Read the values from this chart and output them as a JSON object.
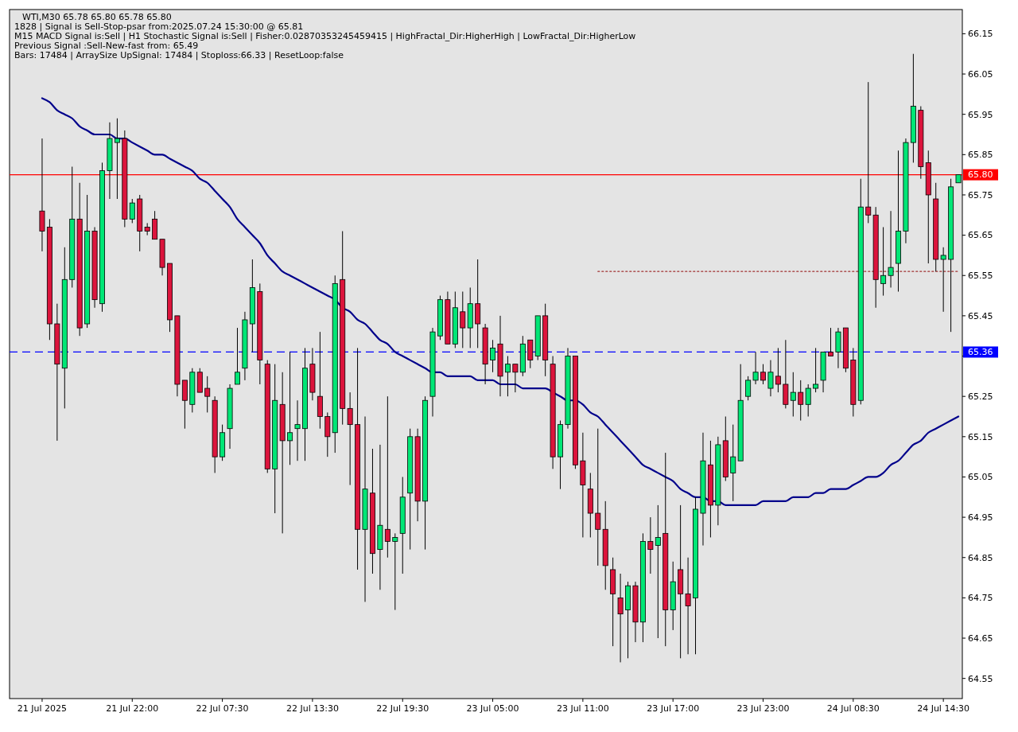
{
  "chart_data": {
    "type": "candlestick",
    "title": "WTI,M30  65.78 65.80 65.78 65.80",
    "annotations": [
      "1828 | Signal is Sell-Stop-psar from:2025.07.24 15:30:00 @ 65.81",
      "M15 MACD Signal is:Sell | H1 Stochastic Signal is:Sell | Fisher:0.02870353245459415 | HighFractal_Dir:HigherHigh | LowFractal_Dir:HigherLow",
      "Previous Signal :Sell-New-fast from: 65.49",
      "Bars: 17484 | ArraySize UpSignal: 17484 | Stoploss:66.33 | ResetLoop:false"
    ],
    "categories": [
      "21 Jul 2025",
      null,
      null,
      null,
      null,
      null,
      null,
      null,
      null,
      null,
      null,
      null,
      "21 Jul 22:00",
      null,
      null,
      null,
      null,
      null,
      null,
      null,
      null,
      null,
      null,
      null,
      "22 Jul 07:30",
      null,
      null,
      null,
      null,
      null,
      null,
      null,
      null,
      null,
      null,
      null,
      "22 Jul 13:30",
      null,
      null,
      null,
      null,
      null,
      null,
      null,
      null,
      null,
      null,
      null,
      "22 Jul 19:30",
      null,
      null,
      null,
      null,
      null,
      null,
      null,
      null,
      null,
      null,
      null,
      "23 Jul 05:00",
      null,
      null,
      null,
      null,
      null,
      null,
      null,
      null,
      null,
      null,
      null,
      "23 Jul 11:00",
      null,
      null,
      null,
      null,
      null,
      null,
      null,
      null,
      null,
      null,
      null,
      "23 Jul 17:00",
      null,
      null,
      null,
      null,
      null,
      null,
      null,
      null,
      null,
      null,
      null,
      "23 Jul 23:00",
      null,
      null,
      null,
      null,
      null,
      null,
      null,
      null,
      null,
      null,
      null,
      "24 Jul 08:30",
      null,
      null,
      null,
      null,
      null,
      null,
      null,
      null,
      null,
      null,
      null,
      "24 Jul 14:30",
      null,
      null
    ],
    "ohlc": [
      [
        65.71,
        65.89,
        65.61,
        65.66
      ],
      [
        65.67,
        65.69,
        65.39,
        65.43
      ],
      [
        65.43,
        65.48,
        65.14,
        65.33
      ],
      [
        65.32,
        65.62,
        65.22,
        65.54
      ],
      [
        65.54,
        65.82,
        65.52,
        65.69
      ],
      [
        65.69,
        65.78,
        65.4,
        65.42
      ],
      [
        65.43,
        65.75,
        65.42,
        65.66
      ],
      [
        65.66,
        65.67,
        65.47,
        65.49
      ],
      [
        65.48,
        65.83,
        65.46,
        65.81
      ],
      [
        65.81,
        65.93,
        65.74,
        65.89
      ],
      [
        65.88,
        65.94,
        65.74,
        65.89
      ],
      [
        65.89,
        65.91,
        65.67,
        65.69
      ],
      [
        65.69,
        65.74,
        65.68,
        65.73
      ],
      [
        65.74,
        65.75,
        65.61,
        65.66
      ],
      [
        65.67,
        65.68,
        65.65,
        65.66
      ],
      [
        65.69,
        65.71,
        65.64,
        65.64
      ],
      [
        65.64,
        65.64,
        65.55,
        65.57
      ],
      [
        65.58,
        65.58,
        65.41,
        65.44
      ],
      [
        65.45,
        65.45,
        65.25,
        65.28
      ],
      [
        65.29,
        65.29,
        65.17,
        65.24
      ],
      [
        65.23,
        65.32,
        65.21,
        65.31
      ],
      [
        65.31,
        65.32,
        65.26,
        65.26
      ],
      [
        65.27,
        65.3,
        65.21,
        65.25
      ],
      [
        65.24,
        65.25,
        65.06,
        65.1
      ],
      [
        65.1,
        65.18,
        65.09,
        65.16
      ],
      [
        65.17,
        65.28,
        65.12,
        65.27
      ],
      [
        65.28,
        65.42,
        65.28,
        65.31
      ],
      [
        65.32,
        65.46,
        65.29,
        65.44
      ],
      [
        65.43,
        65.59,
        65.36,
        65.52
      ],
      [
        65.51,
        65.53,
        65.28,
        65.34
      ],
      [
        65.33,
        65.34,
        65.06,
        65.07
      ],
      [
        65.07,
        65.33,
        64.96,
        65.24
      ],
      [
        65.23,
        65.31,
        64.91,
        65.14
      ],
      [
        65.14,
        65.36,
        65.08,
        65.16
      ],
      [
        65.17,
        65.24,
        65.09,
        65.18
      ],
      [
        65.17,
        65.37,
        65.09,
        65.32
      ],
      [
        65.33,
        65.37,
        65.24,
        65.26
      ],
      [
        65.25,
        65.41,
        65.17,
        65.2
      ],
      [
        65.2,
        65.21,
        65.1,
        65.15
      ],
      [
        65.16,
        65.55,
        65.11,
        65.53
      ],
      [
        65.54,
        65.66,
        65.18,
        65.22
      ],
      [
        65.22,
        65.26,
        65.03,
        65.18
      ],
      [
        65.18,
        65.37,
        64.82,
        64.92
      ],
      [
        64.92,
        65.2,
        64.74,
        65.02
      ],
      [
        65.01,
        65.12,
        64.81,
        64.86
      ],
      [
        64.87,
        65.13,
        64.77,
        64.93
      ],
      [
        64.92,
        65.25,
        64.85,
        64.89
      ],
      [
        64.89,
        64.91,
        64.72,
        64.9
      ],
      [
        64.91,
        65.05,
        64.81,
        65.0
      ],
      [
        65.01,
        65.17,
        64.87,
        65.15
      ],
      [
        65.15,
        65.17,
        64.94,
        64.99
      ],
      [
        64.99,
        65.25,
        64.87,
        65.24
      ],
      [
        65.25,
        65.42,
        65.2,
        65.41
      ],
      [
        65.4,
        65.5,
        65.39,
        65.49
      ],
      [
        65.49,
        65.51,
        65.38,
        65.38
      ],
      [
        65.38,
        65.51,
        65.37,
        65.47
      ],
      [
        65.46,
        65.51,
        65.37,
        65.42
      ],
      [
        65.42,
        65.52,
        65.37,
        65.48
      ],
      [
        65.48,
        65.59,
        65.37,
        65.43
      ],
      [
        65.42,
        65.43,
        65.28,
        65.33
      ],
      [
        65.34,
        65.39,
        65.31,
        65.37
      ],
      [
        65.38,
        65.45,
        65.25,
        65.3
      ],
      [
        65.31,
        65.35,
        65.25,
        65.33
      ],
      [
        65.33,
        65.33,
        65.26,
        65.31
      ],
      [
        65.31,
        65.4,
        65.3,
        65.38
      ],
      [
        65.39,
        65.39,
        65.32,
        65.34
      ],
      [
        65.35,
        65.45,
        65.34,
        65.45
      ],
      [
        65.45,
        65.48,
        65.3,
        65.34
      ],
      [
        65.33,
        65.35,
        65.07,
        65.1
      ],
      [
        65.1,
        65.19,
        65.02,
        65.18
      ],
      [
        65.18,
        65.37,
        65.17,
        65.35
      ],
      [
        65.35,
        65.35,
        65.07,
        65.08
      ],
      [
        65.09,
        65.16,
        64.9,
        65.03
      ],
      [
        65.02,
        65.06,
        64.9,
        64.96
      ],
      [
        64.96,
        65.17,
        64.83,
        64.92
      ],
      [
        64.92,
        64.99,
        64.77,
        64.83
      ],
      [
        64.82,
        64.85,
        64.63,
        64.76
      ],
      [
        64.75,
        64.81,
        64.59,
        64.71
      ],
      [
        64.72,
        64.79,
        64.6,
        64.78
      ],
      [
        64.78,
        64.79,
        64.64,
        64.69
      ],
      [
        64.69,
        64.91,
        64.64,
        64.89
      ],
      [
        64.89,
        64.95,
        64.81,
        64.87
      ],
      [
        64.88,
        64.98,
        64.65,
        64.9
      ],
      [
        64.91,
        65.11,
        64.63,
        64.72
      ],
      [
        64.72,
        64.84,
        64.67,
        64.79
      ],
      [
        64.82,
        64.98,
        64.6,
        64.76
      ],
      [
        64.76,
        64.85,
        64.61,
        64.73
      ],
      [
        64.75,
        65.0,
        64.61,
        64.97
      ],
      [
        64.96,
        65.16,
        64.88,
        65.09
      ],
      [
        65.08,
        65.14,
        64.9,
        64.98
      ],
      [
        64.98,
        65.15,
        64.93,
        65.13
      ],
      [
        65.14,
        65.2,
        65.04,
        65.05
      ],
      [
        65.06,
        65.18,
        64.99,
        65.1
      ],
      [
        65.09,
        65.33,
        65.09,
        65.24
      ],
      [
        65.25,
        65.3,
        65.24,
        65.29
      ],
      [
        65.29,
        65.36,
        65.28,
        65.31
      ],
      [
        65.31,
        65.33,
        65.28,
        65.29
      ],
      [
        65.27,
        65.34,
        65.25,
        65.31
      ],
      [
        65.3,
        65.37,
        65.26,
        65.28
      ],
      [
        65.28,
        65.39,
        65.22,
        65.23
      ],
      [
        65.24,
        65.31,
        65.2,
        65.26
      ],
      [
        65.26,
        65.29,
        65.19,
        65.23
      ],
      [
        65.23,
        65.28,
        65.2,
        65.27
      ],
      [
        65.27,
        65.37,
        65.26,
        65.28
      ],
      [
        65.29,
        65.36,
        65.26,
        65.36
      ],
      [
        65.36,
        65.42,
        65.35,
        65.35
      ],
      [
        65.36,
        65.42,
        65.32,
        65.41
      ],
      [
        65.42,
        65.42,
        65.31,
        65.32
      ],
      [
        65.34,
        65.37,
        65.2,
        65.23
      ],
      [
        65.24,
        65.79,
        65.23,
        65.72
      ],
      [
        65.72,
        66.03,
        65.68,
        65.7
      ],
      [
        65.7,
        65.72,
        65.47,
        65.54
      ],
      [
        65.53,
        65.67,
        65.5,
        65.55
      ],
      [
        65.55,
        65.71,
        65.52,
        65.57
      ],
      [
        65.58,
        65.86,
        65.51,
        65.66
      ],
      [
        65.66,
        65.89,
        65.63,
        65.88
      ],
      [
        65.88,
        66.1,
        65.83,
        65.97
      ],
      [
        65.96,
        65.97,
        65.79,
        65.82
      ],
      [
        65.83,
        65.86,
        65.58,
        65.75
      ],
      [
        65.74,
        65.78,
        65.56,
        65.59
      ],
      [
        65.59,
        65.62,
        65.46,
        65.6
      ],
      [
        65.59,
        65.79,
        65.41,
        65.77
      ],
      [
        65.78,
        65.8,
        65.78,
        65.8
      ]
    ],
    "series": [
      {
        "type": "line",
        "color": "#00008b",
        "values": [
          65.99,
          65.98,
          65.96,
          65.95,
          65.94,
          65.92,
          65.91,
          65.9,
          65.9,
          65.9,
          65.89,
          65.89,
          65.88,
          65.87,
          65.86,
          65.85,
          65.85,
          65.84,
          65.83,
          65.82,
          65.81,
          65.79,
          65.78,
          65.76,
          65.74,
          65.72,
          65.69,
          65.67,
          65.65,
          65.63,
          65.6,
          65.58,
          65.56,
          65.55,
          65.54,
          65.53,
          65.52,
          65.51,
          65.5,
          65.49,
          65.47,
          65.46,
          65.44,
          65.43,
          65.41,
          65.39,
          65.38,
          65.36,
          65.35,
          65.34,
          65.33,
          65.32,
          65.31,
          65.31,
          65.3,
          65.3,
          65.3,
          65.3,
          65.29,
          65.29,
          65.29,
          65.28,
          65.28,
          65.28,
          65.27,
          65.27,
          65.27,
          65.27,
          65.26,
          65.25,
          65.24,
          65.24,
          65.23,
          65.21,
          65.2,
          65.18,
          65.16,
          65.14,
          65.12,
          65.1,
          65.08,
          65.07,
          65.06,
          65.05,
          65.04,
          65.02,
          65.01,
          65.0,
          65.0,
          64.99,
          64.99,
          64.98,
          64.98,
          64.98,
          64.98,
          64.98,
          64.99,
          64.99,
          64.99,
          64.99,
          65.0,
          65.0,
          65.0,
          65.01,
          65.01,
          65.02,
          65.02,
          65.02,
          65.03,
          65.04,
          65.05,
          65.05,
          65.06,
          65.08,
          65.09,
          65.11,
          65.13,
          65.14,
          65.16,
          65.17,
          65.18,
          65.19,
          65.2
        ]
      },
      {
        "type": "line",
        "color": "#a03030",
        "line_style": "dotted",
        "values": [
          null,
          null,
          null,
          null,
          null,
          null,
          null,
          null,
          null,
          null,
          null,
          null,
          null,
          null,
          null,
          null,
          null,
          null,
          null,
          null,
          null,
          null,
          null,
          null,
          null,
          null,
          null,
          null,
          null,
          null,
          null,
          null,
          null,
          null,
          null,
          null,
          null,
          null,
          null,
          null,
          null,
          null,
          null,
          null,
          null,
          null,
          null,
          null,
          null,
          null,
          null,
          null,
          null,
          null,
          null,
          null,
          null,
          null,
          null,
          null,
          null,
          null,
          null,
          null,
          null,
          null,
          null,
          null,
          null,
          null,
          null,
          null,
          null,
          null,
          65.56,
          65.56,
          65.56,
          65.56,
          65.56,
          65.56,
          65.56,
          65.56,
          65.56,
          65.56,
          65.56,
          65.56,
          65.56,
          65.56,
          65.56,
          65.56,
          65.56,
          65.56,
          65.56,
          65.56,
          65.56,
          65.56,
          65.56,
          65.56,
          65.56,
          65.56,
          65.56,
          65.56,
          65.56,
          65.56,
          65.56,
          65.56,
          65.56,
          65.56,
          65.56,
          65.56,
          65.56,
          65.56,
          65.56,
          65.56,
          65.56,
          65.56,
          65.56,
          65.56,
          65.56,
          65.56,
          65.56,
          65.56,
          65.56
        ]
      }
    ],
    "ref_lines": [
      {
        "axis": "y",
        "value": 65.8,
        "label": "65.80",
        "color": "#ff0000",
        "line_style": "solid"
      },
      {
        "axis": "y",
        "value": 65.36,
        "label": "65.36",
        "color": "#0000ff",
        "line_style": "dashed"
      }
    ],
    "ylim": [
      64.5,
      66.21
    ],
    "yticks": [
      64.55,
      64.65,
      64.75,
      64.85,
      64.95,
      65.05,
      65.15,
      65.25,
      {
        "value": 65.35,
        "label": null
      },
      65.45,
      65.55,
      65.65,
      65.75,
      65.85,
      65.95,
      66.05,
      66.15
    ]
  }
}
